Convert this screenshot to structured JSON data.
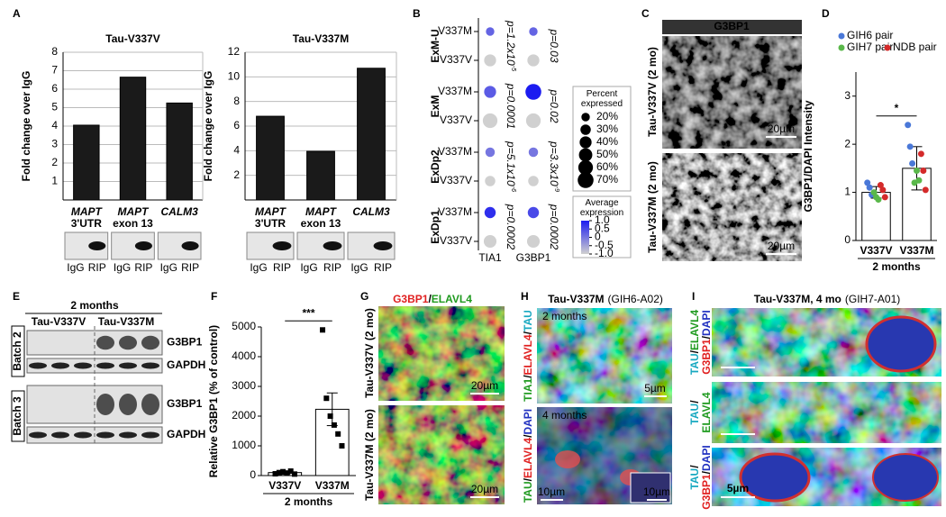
{
  "panel_letters": [
    "A",
    "B",
    "C",
    "D",
    "E",
    "F",
    "G",
    "H",
    "I"
  ],
  "chart_data": [
    {
      "type": "bar",
      "title": "Tau-V337V",
      "ylabel": "Fold change over IgG",
      "categories": [
        [
          "MAPT",
          "3'UTR"
        ],
        [
          "MAPT",
          "exon 13"
        ],
        [
          "CALM3"
        ]
      ],
      "values": [
        4.05,
        6.65,
        5.25
      ],
      "color": "#1a1a1a",
      "ylim": [
        0,
        8
      ],
      "yticks": [
        1,
        2,
        3,
        4,
        5,
        6,
        7,
        8
      ],
      "grid": true
    },
    {
      "type": "bar",
      "title": "Tau-V337M",
      "ylabel": "Fold change over IgG",
      "categories": [
        [
          "MAPT",
          "3'UTR"
        ],
        [
          "MAPT",
          "exon 13"
        ],
        [
          "CALM3"
        ]
      ],
      "values": [
        6.8,
        3.95,
        10.7
      ],
      "color": "#1a1a1a",
      "ylim": [
        0,
        12
      ],
      "yticks": [
        2,
        4,
        6,
        8,
        10,
        12
      ],
      "grid": true
    },
    {
      "type": "dot",
      "groups": [
        "ExM-U",
        "ExM",
        "ExDp2",
        "ExDp1"
      ],
      "categories": [
        "V337M",
        "V337V"
      ],
      "columns": [
        "TIA1",
        "G3BP1"
      ],
      "percent": [
        [
          [
            20,
            20
          ],
          [
            40,
            40
          ]
        ],
        [
          [
            40,
            70
          ],
          [
            60,
            60
          ]
        ],
        [
          [
            25,
            25
          ],
          [
            30,
            30
          ]
        ],
        [
          [
            35,
            35
          ],
          [
            45,
            45
          ]
        ]
      ],
      "expression": [
        [
          [
            0.2,
            0.2
          ],
          [
            -1,
            -1
          ]
        ],
        [
          [
            0.3,
            1.0
          ],
          [
            -1,
            -1
          ]
        ],
        [
          [
            0.0,
            0.0
          ],
          [
            -1,
            -1
          ]
        ],
        [
          [
            0.8,
            0.5
          ],
          [
            -1,
            -1
          ]
        ]
      ],
      "p_values": [
        [
          {
            "text": "p=1.2x10",
            "exp": "-5"
          },
          {
            "text": "p=0.03"
          }
        ],
        [
          {
            "text": "p=0.0001"
          },
          {
            "text": "p=0.02"
          }
        ],
        [
          {
            "text": "p=5.1x10",
            "exp": "-6"
          },
          {
            "text": "p=3.3x10",
            "exp": "-9"
          }
        ],
        [
          {
            "text": "p=0.0002"
          },
          {
            "text": "p=0.0002"
          }
        ]
      ],
      "size_legend": {
        "title": "Percent expressed",
        "values": [
          20,
          30,
          40,
          50,
          60,
          70
        ],
        "value_labels": [
          "20%",
          "30%",
          "40%",
          "50%",
          "60%",
          "70%"
        ]
      },
      "color_legend": {
        "title": "Average expression",
        "lim": [
          -1,
          1
        ],
        "ticks": [
          {
            "value": 1,
            "label": "1.0"
          },
          0.5,
          0,
          -0.5,
          {
            "value": -1,
            "label": "-1.0"
          }
        ]
      },
      "color_range": [
        "#d0d0d0",
        "#1c1cf0"
      ]
    },
    {
      "type": "bar",
      "ylabel": "G3BP1/DAPI Intensity",
      "categories": [
        "V337V",
        "V337M"
      ],
      "values": [
        1.0,
        1.5
      ],
      "errors": [
        0.12,
        0.45
      ],
      "color": "#ffffff",
      "ylim": [
        0,
        3.5
      ],
      "yticks": [
        0,
        1,
        2,
        3
      ],
      "xlabel": "2 months",
      "significance": "*",
      "legend": "top",
      "series": [
        {
          "name": "GIH6 pair",
          "color": "#4a78d8",
          "values": [
            [
              1.2,
              1.1,
              0.95
            ],
            [
              2.4,
              1.95,
              1.6
            ]
          ]
        },
        {
          "name": "GIH7 pair",
          "color": "#5ab84a",
          "values": [
            [
              1.0,
              0.9,
              0.85
            ],
            [
              1.2,
              1.45,
              1.25
            ]
          ]
        },
        {
          "name": "NDB pair",
          "color": "#d42a2a",
          "values": [
            [
              1.15,
              1.05,
              0.9
            ],
            [
              1.8,
              1.45,
              1.05
            ]
          ]
        }
      ]
    },
    {
      "type": "bar",
      "ylabel": "Relative G3BP1 (% of control)",
      "categories": [
        "V337V",
        "V337M"
      ],
      "values": [
        100,
        2230
      ],
      "errors": [
        60,
        550
      ],
      "color": "#ffffff",
      "ylim": [
        0,
        5000
      ],
      "yticks": [
        0,
        1000,
        2000,
        3000,
        4000,
        5000
      ],
      "xlabel": "2 months",
      "significance": "***",
      "series": [
        {
          "color": "#000000",
          "values": [
            [
              60,
              100,
              130,
              80,
              150,
              50
            ],
            [
              4900,
              2600,
              2000,
              1700,
              1400,
              1000
            ]
          ]
        }
      ]
    }
  ],
  "A": {
    "lanes": [
      "IgG",
      "RIP"
    ]
  },
  "C": {
    "header": "G3BP1",
    "row_labels": [
      "Tau-V337V (2 mo)",
      "Tau-V337M (2 mo)"
    ],
    "scale_bar": "20µm"
  },
  "E": {
    "title": "2 months",
    "groups": [
      "Tau-V337V",
      "Tau-V337M"
    ],
    "batches": [
      "Batch 2",
      "Batch 3"
    ],
    "bands": [
      "G3BP1",
      "GAPDH"
    ]
  },
  "G": {
    "title": [
      {
        "text": "G3BP1",
        "color": "#e02020"
      },
      {
        "text": "/"
      },
      {
        "text": "ELAVL4",
        "color": "#1f9a1f"
      }
    ],
    "row_labels": [
      "Tau-V337V (2 mo)",
      "Tau-V337M (2 mo)"
    ],
    "scale_bar": "20µm"
  },
  "H": {
    "title": [
      {
        "text": "Tau-V337M",
        "bold": true
      },
      {
        "text": "(GIH6-A02)"
      }
    ],
    "time_labels": [
      "2 months",
      "4 months"
    ],
    "channels": [
      [
        [
          {
            "text": "TIA1",
            "color": "#1f9a1f"
          },
          {
            "text": "/"
          },
          {
            "text": "ELAVL4",
            "color": "#e02020"
          },
          {
            "text": "/"
          },
          {
            "text": "TAU",
            "color": "#17a8c0"
          }
        ]
      ],
      [
        [
          {
            "text": "TAU",
            "color": "#1f9a1f"
          },
          {
            "text": "/"
          },
          {
            "text": "ELAVL4",
            "color": "#e02020"
          },
          {
            "text": "/"
          },
          {
            "text": "DAPI",
            "color": "#2030c0"
          }
        ]
      ]
    ],
    "scale_bars": [
      "5µm",
      "10µm",
      "10µm"
    ]
  },
  "I": {
    "title": [
      {
        "text": "Tau-V337M, 4 mo",
        "bold": true
      },
      {
        "text": "(GIH7-A01)"
      }
    ],
    "channels": [
      [
        [
          {
            "text": "TAU",
            "color": "#17a8c0"
          },
          {
            "text": "/"
          },
          {
            "text": "ELAVL4",
            "color": "#1f9a1f"
          }
        ],
        [
          {
            "text": "G3BP1",
            "color": "#e02020"
          },
          {
            "text": "/"
          },
          {
            "text": "DAPI",
            "color": "#2030c0"
          }
        ]
      ],
      [
        [
          {
            "text": "TAU",
            "color": "#17a8c0"
          },
          {
            "text": "/"
          }
        ],
        [
          {
            "text": "ELAVL4",
            "color": "#1f9a1f"
          }
        ]
      ],
      [
        [
          {
            "text": "TAU",
            "color": "#17a8c0"
          },
          {
            "text": "/"
          }
        ],
        [
          {
            "text": "G3BP1",
            "color": "#e02020"
          },
          {
            "text": "/"
          },
          {
            "text": "DAPI",
            "color": "#2030c0"
          }
        ]
      ]
    ],
    "scale_bar": "5µm"
  }
}
